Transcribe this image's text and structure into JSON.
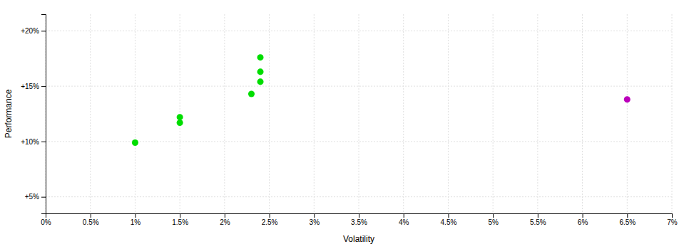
{
  "chart_data": {
    "type": "scatter",
    "xlabel": "Volatility",
    "ylabel": "Performance",
    "xlim": [
      0.0,
      0.07
    ],
    "ylim": [
      0.035,
      0.215
    ],
    "xticks": [
      {
        "value": 0.0,
        "label": "0%"
      },
      {
        "value": 0.005,
        "label": "0.5%"
      },
      {
        "value": 0.01,
        "label": "1%"
      },
      {
        "value": 0.015,
        "label": "1.5%"
      },
      {
        "value": 0.02,
        "label": "2%"
      },
      {
        "value": 0.025,
        "label": "2.5%"
      },
      {
        "value": 0.03,
        "label": "3%"
      },
      {
        "value": 0.035,
        "label": "3.5%"
      },
      {
        "value": 0.04,
        "label": "4%"
      },
      {
        "value": 0.045,
        "label": "4.5%"
      },
      {
        "value": 0.05,
        "label": "5%"
      },
      {
        "value": 0.055,
        "label": "5.5%"
      },
      {
        "value": 0.06,
        "label": "6%"
      },
      {
        "value": 0.065,
        "label": "6.5%"
      },
      {
        "value": 0.07,
        "label": "7%"
      }
    ],
    "yticks": [
      {
        "value": 0.05,
        "label": "+5%"
      },
      {
        "value": 0.1,
        "label": "+10%"
      },
      {
        "value": 0.15,
        "label": "+15%"
      },
      {
        "value": 0.2,
        "label": "+20%"
      }
    ],
    "grid": true,
    "series": [
      {
        "color": "#00dd00",
        "marker": "circle",
        "x": [
          0.01,
          0.015,
          0.015,
          0.023,
          0.024,
          0.024,
          0.024
        ],
        "values": [
          0.099,
          0.122,
          0.117,
          0.143,
          0.154,
          0.163,
          0.176
        ]
      },
      {
        "color": "#bb00bb",
        "marker": "circle",
        "x": [
          0.065
        ],
        "values": [
          0.138
        ]
      }
    ]
  }
}
